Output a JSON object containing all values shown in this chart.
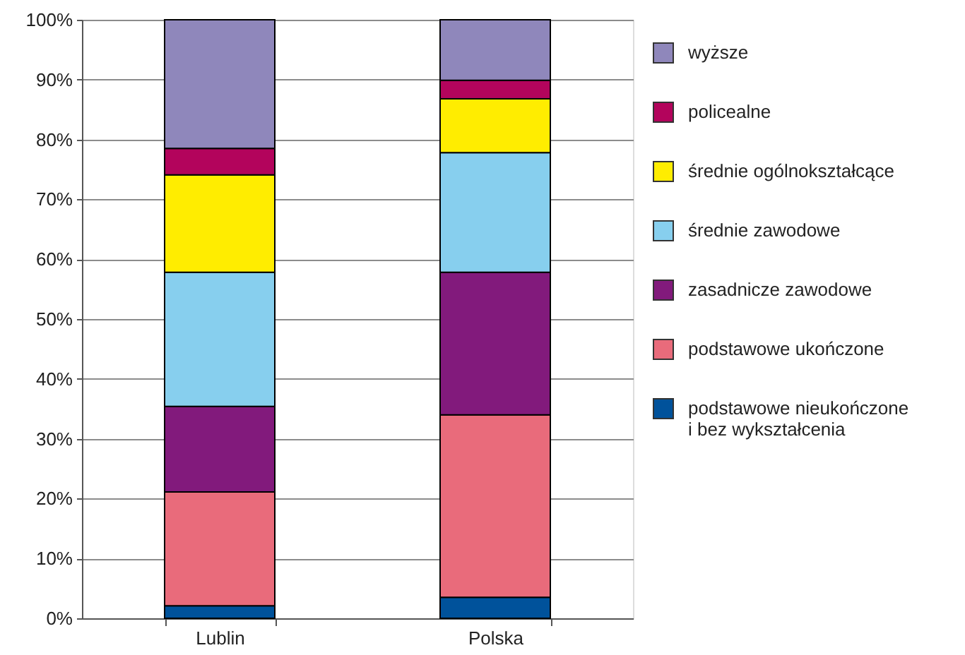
{
  "chart_data": {
    "type": "bar",
    "stacked": true,
    "categories": [
      "Lublin",
      "Polska"
    ],
    "series": [
      {
        "name": "podstawowe nieukończone i bez wykształcenia",
        "color": "#00529b",
        "values": [
          2.1,
          3.5
        ]
      },
      {
        "name": "podstawowe ukończone",
        "color": "#e96b7b",
        "values": [
          19.0,
          30.5
        ]
      },
      {
        "name": "zasadnicze zawodowe",
        "color": "#821a7c",
        "values": [
          14.3,
          23.8
        ]
      },
      {
        "name": "średnie zawodowe",
        "color": "#87cfee",
        "values": [
          22.4,
          20.0
        ]
      },
      {
        "name": "średnie ogólnokształcące",
        "color": "#ffed00",
        "values": [
          16.3,
          9.0
        ]
      },
      {
        "name": "policealne",
        "color": "#b3045c",
        "values": [
          4.4,
          3.1
        ]
      },
      {
        "name": "wyższe",
        "color": "#8f87bb",
        "values": [
          21.5,
          10.1
        ]
      }
    ],
    "ylim": [
      0,
      100
    ],
    "yticks": [
      {
        "value": 0,
        "label": "0%"
      },
      {
        "value": 10,
        "label": "10%"
      },
      {
        "value": 20,
        "label": "20%"
      },
      {
        "value": 30,
        "label": "30%"
      },
      {
        "value": 40,
        "label": "40%"
      },
      {
        "value": 50,
        "label": "50%"
      },
      {
        "value": 60,
        "label": "60%"
      },
      {
        "value": 70,
        "label": "70%"
      },
      {
        "value": 80,
        "label": "80%"
      },
      {
        "value": 90,
        "label": "90%"
      },
      {
        "value": 100,
        "label": "100%"
      }
    ],
    "grid": "y",
    "legend": "right"
  }
}
